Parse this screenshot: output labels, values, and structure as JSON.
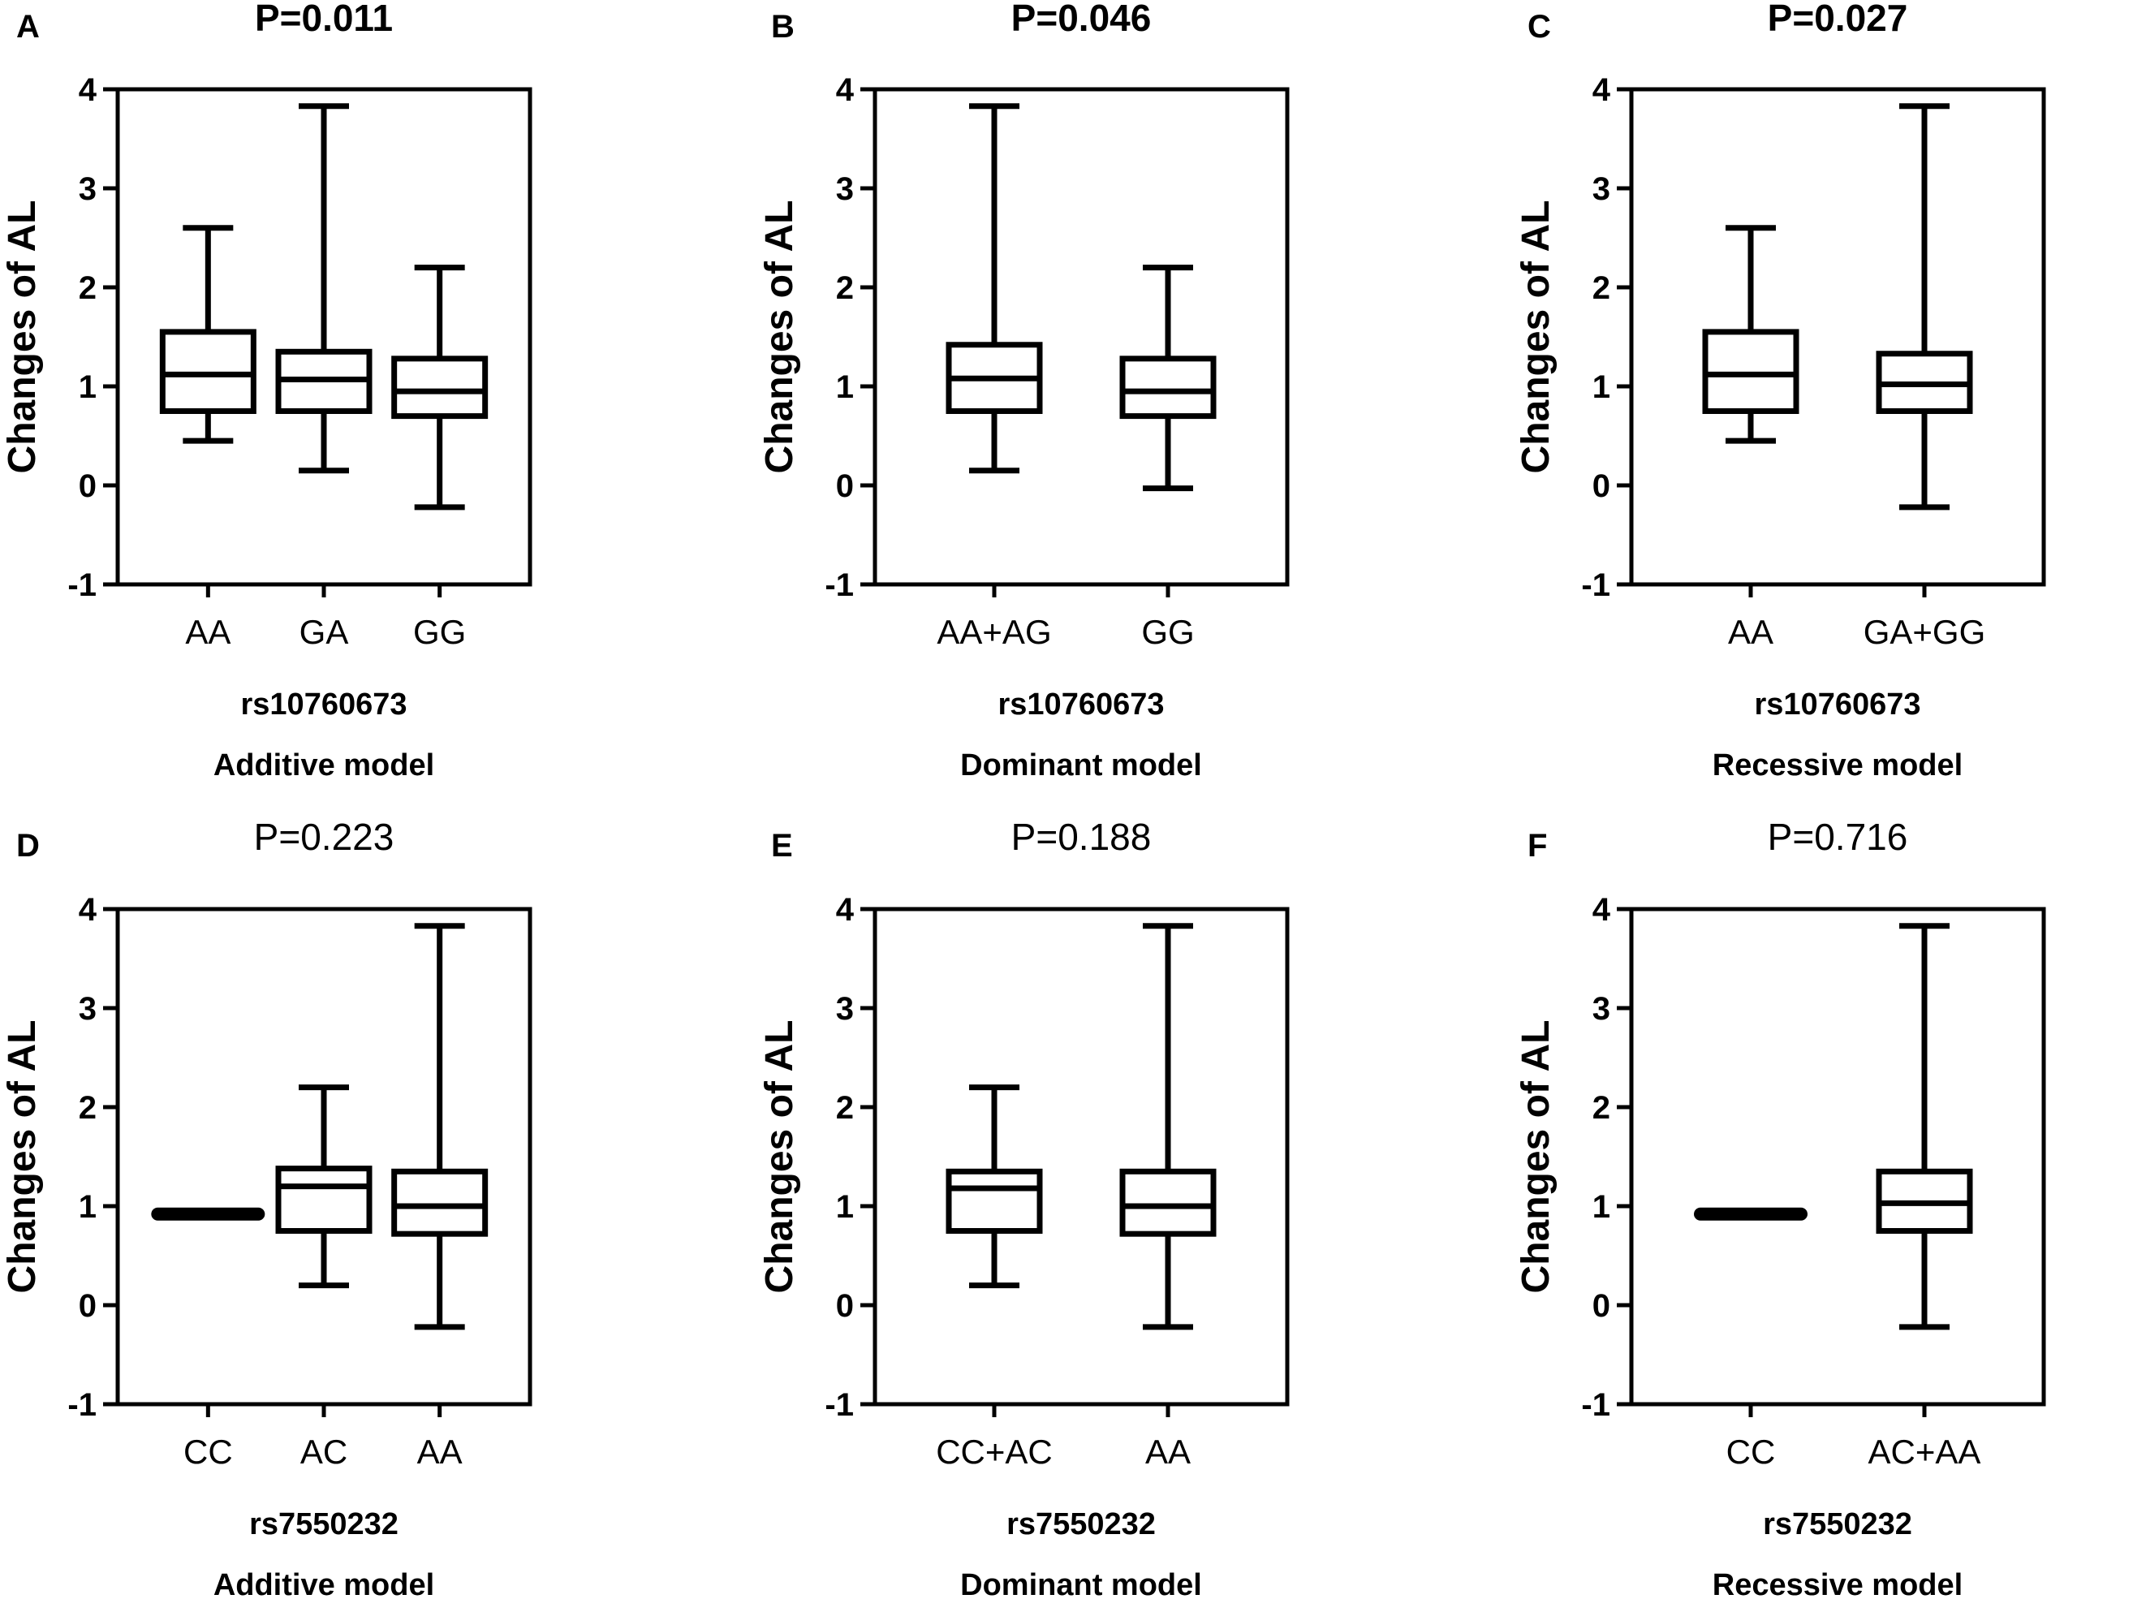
{
  "figure": {
    "background": "#ffffff",
    "ink": "#000000"
  },
  "chart_data": [
    {
      "type": "box",
      "panel": "A",
      "title": "P=0.011",
      "title_bold": true,
      "ylabel": "Changes of AL",
      "xlabel": "rs10760673",
      "model": "Additive model",
      "ylim": [
        -1,
        4
      ],
      "yticks": [
        "-1",
        "0",
        "1",
        "2",
        "3",
        "4"
      ],
      "categories": [
        "AA",
        "GA",
        "GG"
      ],
      "boxes": [
        {
          "min": 0.45,
          "q1": 0.75,
          "median": 1.12,
          "q3": 1.55,
          "max": 2.6
        },
        {
          "min": 0.15,
          "q1": 0.75,
          "median": 1.07,
          "q3": 1.35,
          "max": 3.83
        },
        {
          "min": -0.22,
          "q1": 0.7,
          "median": 0.95,
          "q3": 1.28,
          "max": 2.2
        }
      ]
    },
    {
      "type": "box",
      "panel": "B",
      "title": "P=0.046",
      "title_bold": true,
      "ylabel": "Changes of AL",
      "xlabel": "rs10760673",
      "model": "Dominant model",
      "ylim": [
        -1,
        4
      ],
      "yticks": [
        "-1",
        "0",
        "1",
        "2",
        "3",
        "4"
      ],
      "categories": [
        "AA+AG",
        "GG"
      ],
      "boxes": [
        {
          "min": 0.15,
          "q1": 0.75,
          "median": 1.08,
          "q3": 1.42,
          "max": 3.83
        },
        {
          "min": -0.03,
          "q1": 0.7,
          "median": 0.95,
          "q3": 1.28,
          "max": 2.2
        }
      ]
    },
    {
      "type": "box",
      "panel": "C",
      "title": "P=0.027",
      "title_bold": true,
      "ylabel": "Changes of AL",
      "xlabel": "rs10760673",
      "model": "Recessive model",
      "ylim": [
        -1,
        4
      ],
      "yticks": [
        "-1",
        "0",
        "1",
        "2",
        "3",
        "4"
      ],
      "categories": [
        "AA",
        "GA+GG"
      ],
      "boxes": [
        {
          "min": 0.45,
          "q1": 0.75,
          "median": 1.12,
          "q3": 1.55,
          "max": 2.6
        },
        {
          "min": -0.22,
          "q1": 0.75,
          "median": 1.02,
          "q3": 1.33,
          "max": 3.83
        }
      ]
    },
    {
      "type": "box",
      "panel": "D",
      "title": "P=0.223",
      "title_bold": false,
      "ylabel": "Changes of AL",
      "xlabel": "rs7550232",
      "model": "Additive model",
      "ylim": [
        -1,
        4
      ],
      "yticks": [
        "-1",
        "0",
        "1",
        "2",
        "3",
        "4"
      ],
      "categories": [
        "CC",
        "AC",
        "AA"
      ],
      "boxes": [
        {
          "min": 0.92,
          "q1": 0.92,
          "median": 0.92,
          "q3": 0.92,
          "max": 0.92
        },
        {
          "min": 0.2,
          "q1": 0.75,
          "median": 1.2,
          "q3": 1.38,
          "max": 2.2
        },
        {
          "min": -0.22,
          "q1": 0.72,
          "median": 1.0,
          "q3": 1.35,
          "max": 3.83
        }
      ]
    },
    {
      "type": "box",
      "panel": "E",
      "title": "P=0.188",
      "title_bold": false,
      "ylabel": "Changes of AL",
      "xlabel": "rs7550232",
      "model": "Dominant model",
      "ylim": [
        -1,
        4
      ],
      "yticks": [
        "-1",
        "0",
        "1",
        "2",
        "3",
        "4"
      ],
      "categories": [
        "CC+AC",
        "AA"
      ],
      "boxes": [
        {
          "min": 0.2,
          "q1": 0.75,
          "median": 1.18,
          "q3": 1.35,
          "max": 2.2
        },
        {
          "min": -0.22,
          "q1": 0.72,
          "median": 1.0,
          "q3": 1.35,
          "max": 3.83
        }
      ]
    },
    {
      "type": "box",
      "panel": "F",
      "title": "P=0.716",
      "title_bold": false,
      "ylabel": "Changes of AL",
      "xlabel": "rs7550232",
      "model": "Recessive model",
      "ylim": [
        -1,
        4
      ],
      "yticks": [
        "-1",
        "0",
        "1",
        "2",
        "3",
        "4"
      ],
      "categories": [
        "CC",
        "AC+AA"
      ],
      "boxes": [
        {
          "min": 0.92,
          "q1": 0.92,
          "median": 0.92,
          "q3": 0.92,
          "max": 0.92
        },
        {
          "min": -0.22,
          "q1": 0.75,
          "median": 1.03,
          "q3": 1.35,
          "max": 3.83
        }
      ]
    }
  ]
}
